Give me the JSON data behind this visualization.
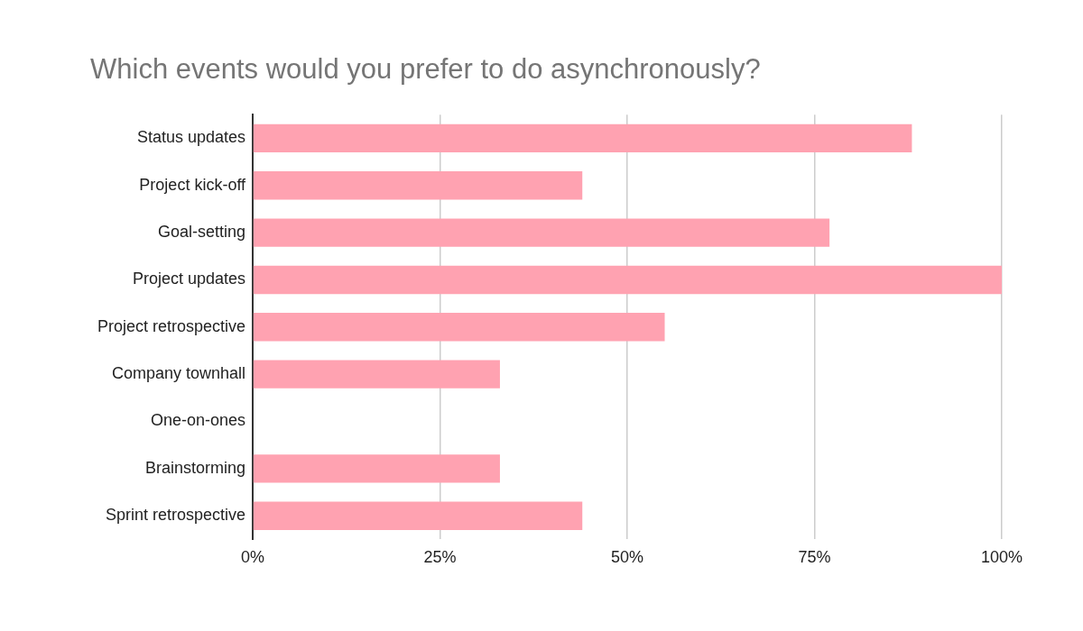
{
  "chart_data": {
    "type": "bar",
    "orientation": "horizontal",
    "title": "Which events would you prefer to do asynchronously?",
    "categories": [
      "Status updates",
      "Project kick-off",
      "Goal-setting",
      "Project updates",
      "Project retrospective",
      "Company townhall",
      "One-on-ones",
      "Brainstorming",
      "Sprint retrospective"
    ],
    "values": [
      88,
      44,
      77,
      100,
      55,
      33,
      0,
      33,
      44
    ],
    "color": "#ffa2b1",
    "xlim": [
      0,
      100
    ],
    "xticks": [
      {
        "value": 0,
        "label": "0%"
      },
      {
        "value": 25,
        "label": "25%"
      },
      {
        "value": 50,
        "label": "50%"
      },
      {
        "value": 75,
        "label": "75%"
      },
      {
        "value": 100,
        "label": "100%"
      }
    ],
    "grid": "x",
    "legend": false
  }
}
